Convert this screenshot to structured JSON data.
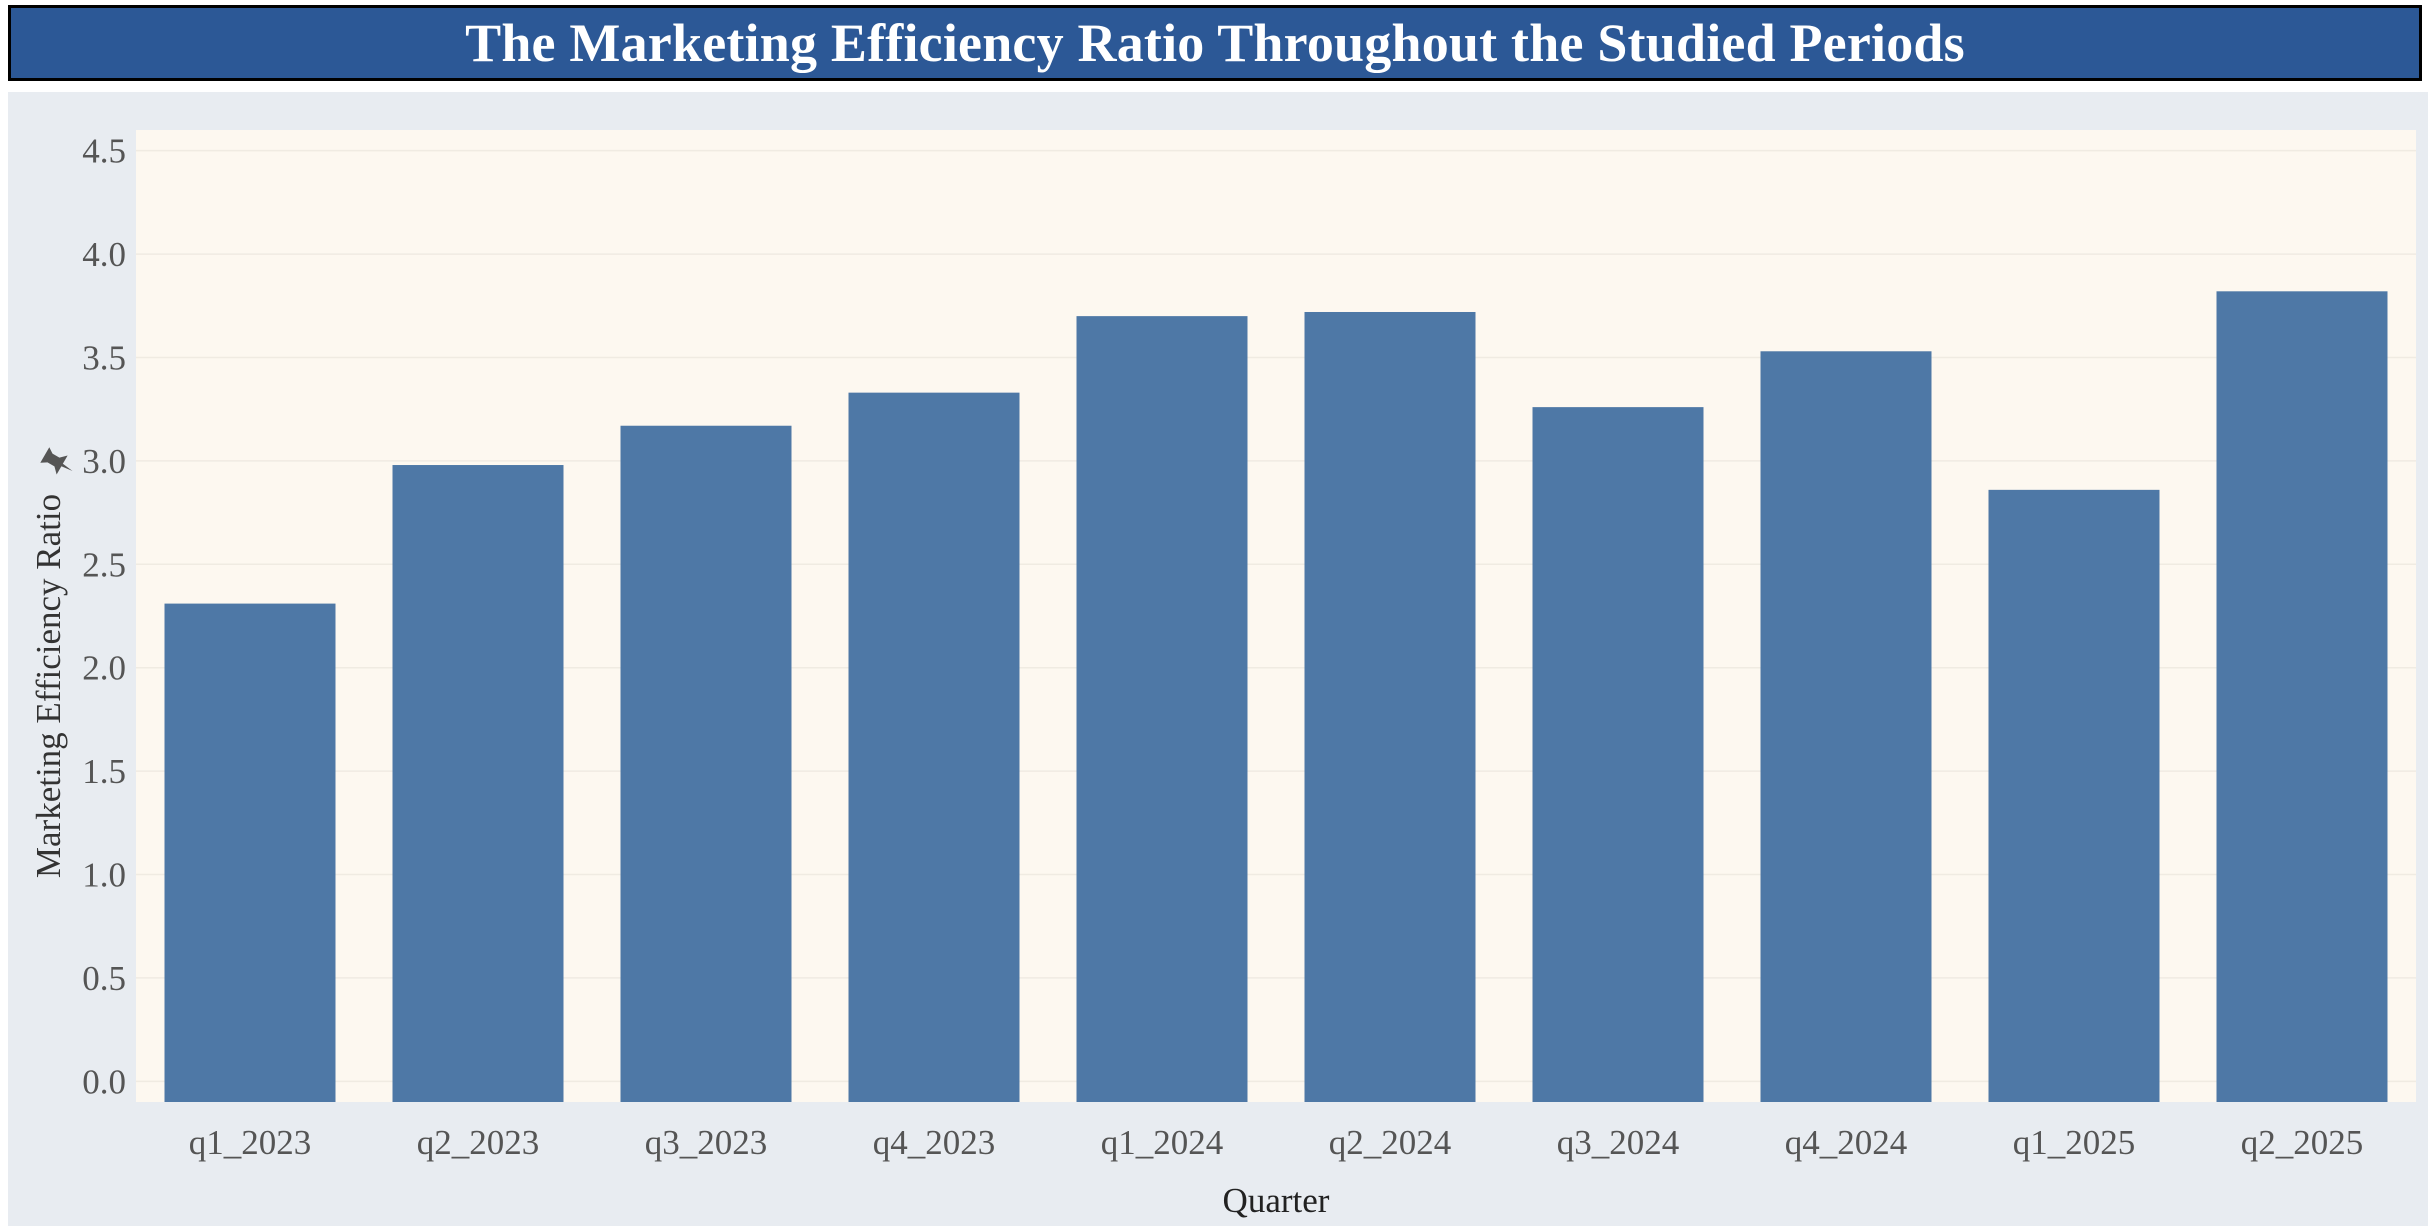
{
  "header": {
    "title": "The Marketing Efficiency Ratio Throughout the Studied Periods"
  },
  "colors": {
    "title_background": "#2c5896",
    "panel_background": "#e8ecf1",
    "plot_background": "#fdf8f0",
    "bar": "#4e78a6",
    "axis_text": "#555555"
  },
  "axis_icon": "pin-icon",
  "chart_data": {
    "type": "bar",
    "title": "The Marketing Efficiency Ratio Throughout the Studied Periods",
    "xlabel": "Quarter",
    "ylabel": "Marketing Efficiency Ratio",
    "categories": [
      "q1_2023",
      "q2_2023",
      "q3_2023",
      "q4_2023",
      "q1_2024",
      "q2_2024",
      "q3_2024",
      "q4_2024",
      "q1_2025",
      "q2_2025"
    ],
    "values": [
      2.31,
      2.98,
      3.17,
      3.33,
      3.7,
      3.72,
      3.26,
      3.53,
      2.86,
      3.82
    ],
    "ylim": [
      -0.1,
      4.6
    ],
    "yticks": [
      "0.0",
      "0.5",
      "1.0",
      "1.5",
      "2.0",
      "2.5",
      "3.0",
      "3.5",
      "4.0",
      "4.5"
    ],
    "grid": true,
    "legend": "none"
  }
}
